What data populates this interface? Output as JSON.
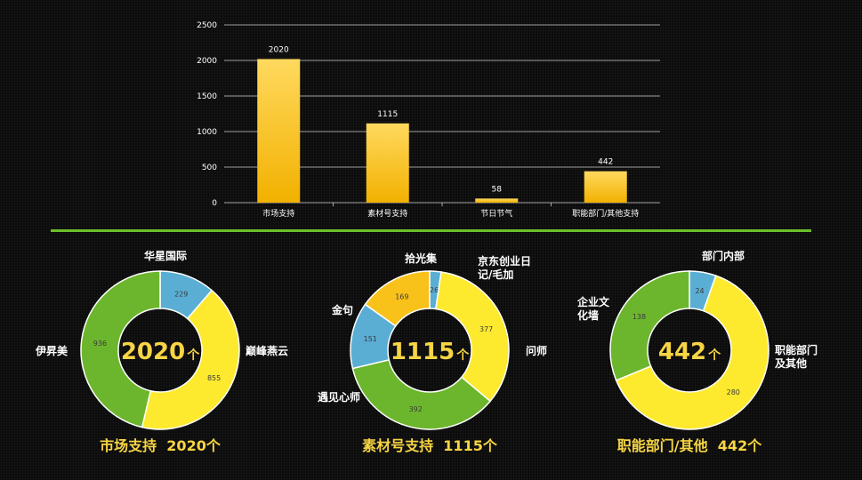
{
  "chart_data": [
    {
      "type": "bar",
      "categories": [
        "市场支持",
        "素材号支持",
        "节日节气",
        "职能部门/其他支持"
      ],
      "values": [
        2020,
        1115,
        58,
        442
      ],
      "ylim": [
        0,
        2500
      ],
      "yticks": [
        0,
        500,
        1000,
        1500,
        2000,
        2500
      ],
      "grid": true,
      "color_top": "#ffd95e",
      "color_bottom": "#f2b100"
    },
    {
      "type": "pie",
      "title": "市场支持 2020个",
      "title_name": "市场支持",
      "title_count": "2020个",
      "center_number": "2020",
      "center_unit": "个",
      "slices": [
        {
          "label": "华星国际",
          "value": 229,
          "color": "#5aaed4"
        },
        {
          "label": "巅峰燕云",
          "value": 855,
          "color": "#fde92e"
        },
        {
          "label": "伊昇美",
          "value": 936,
          "color": "#6cb62d"
        }
      ]
    },
    {
      "type": "pie",
      "title": "素材号支持 1115个",
      "title_name": "素材号支持",
      "title_count": "1115个",
      "center_number": "1115",
      "center_unit": "个",
      "slices": [
        {
          "label": "京东创业日记/毛加",
          "label_lines": [
            "京东创业日",
            "记/毛加"
          ],
          "value": 26,
          "color": "#5aaed4"
        },
        {
          "label": "问师",
          "value": 377,
          "color": "#fde92e"
        },
        {
          "label": "遇见心师",
          "value": 392,
          "color": "#6cb62d"
        },
        {
          "label": "金句",
          "value": 151,
          "color": "#5aaed4"
        },
        {
          "label": "拾光集",
          "value": 169,
          "color": "#f9c21a"
        }
      ]
    },
    {
      "type": "pie",
      "title": "职能部门/其他 442个",
      "title_name": "职能部门/其他",
      "title_count": "442个",
      "center_number": "442",
      "center_unit": "个",
      "slices": [
        {
          "label": "部门内部",
          "value": 24,
          "color": "#5aaed4"
        },
        {
          "label": "职能部门及其他",
          "label_lines": [
            "职能部门",
            "及其他"
          ],
          "value": 280,
          "color": "#fde92e"
        },
        {
          "label": "企业文化墙",
          "label_lines": [
            "企业文",
            "化墙"
          ],
          "value": 138,
          "color": "#6cb62d"
        }
      ]
    }
  ]
}
